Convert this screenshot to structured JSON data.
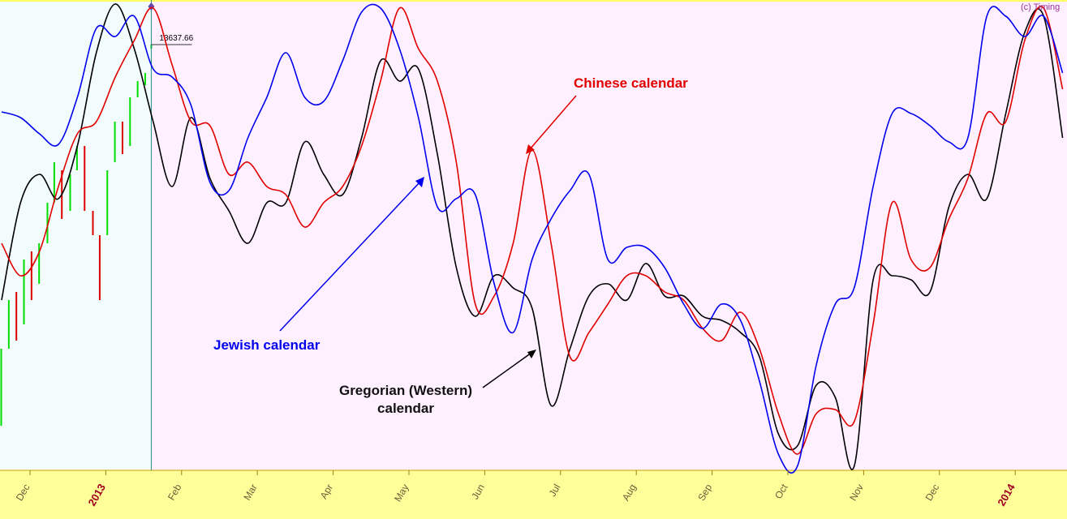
{
  "chart_data": {
    "type": "line",
    "x": [
      -0.375,
      -0.125,
      0.125,
      0.375,
      0.625,
      0.875,
      1.125,
      1.375,
      1.625,
      1.875,
      2.125,
      2.375,
      2.625,
      2.875,
      3.125,
      3.375,
      3.625,
      3.875,
      4.125,
      4.375,
      4.625,
      4.875,
      5.125,
      5.375,
      5.625,
      5.875,
      6.125,
      6.375,
      6.625,
      6.875,
      7.125,
      7.375,
      7.625,
      7.875,
      8.125,
      8.375,
      8.625,
      8.875,
      9.125,
      9.375,
      9.625,
      9.875,
      10.125,
      10.375,
      10.625,
      10.875,
      11.125,
      11.375,
      11.625,
      11.875,
      12.125,
      12.375,
      12.625,
      12.875,
      13.125,
      13.375,
      13.625
    ],
    "series": [
      {
        "name": "Jewish calendar",
        "color": "#0000ee",
        "values": [
          44.2,
          43.5,
          41.5,
          40.2,
          46,
          54.5,
          53.5,
          56,
          49.5,
          48.5,
          45,
          35.5,
          34.5,
          41,
          46,
          51.5,
          46,
          45.5,
          50.5,
          56.5,
          57,
          52,
          43.5,
          32.5,
          33.5,
          34,
          23,
          17,
          26,
          31,
          34.5,
          36.5,
          26,
          27.5,
          27.5,
          25,
          20.5,
          17.5,
          20.5,
          18.5,
          11,
          2,
          0.5,
          13,
          20.5,
          22.5,
          35,
          44,
          44,
          42.5,
          40.5,
          41,
          56,
          56,
          53.5,
          56,
          49
        ]
      },
      {
        "name": "Chinese calendar",
        "color": "#e00000",
        "values": [
          28,
          24,
          27,
          35,
          41.5,
          43,
          48.5,
          53,
          57,
          50,
          43,
          42.5,
          36.5,
          38,
          35,
          34,
          30,
          33,
          35,
          40,
          48,
          57,
          52,
          48,
          38,
          20.5,
          21.5,
          28,
          39.5,
          28,
          14,
          17,
          20.5,
          24,
          24,
          22,
          21,
          17.5,
          16,
          19.5,
          15,
          7,
          2,
          7,
          7.5,
          6,
          18,
          33,
          26,
          25,
          31,
          36,
          44,
          43,
          53,
          57,
          47
        ]
      },
      {
        "name": [
          "Gregorian (Western)",
          "calendar"
        ],
        "color": "#000000",
        "values": [
          21,
          33,
          36.5,
          33.5,
          40,
          51.5,
          57.5,
          52,
          43,
          35,
          43.5,
          36,
          32,
          28,
          33,
          33,
          40.5,
          36.5,
          34,
          41,
          50.5,
          48,
          49.5,
          39,
          25,
          19,
          24,
          22.5,
          20,
          8,
          15,
          21.5,
          23,
          21,
          25.5,
          21.5,
          21.5,
          19,
          18.5,
          17,
          14,
          4.5,
          3,
          10.5,
          9,
          0.5,
          23.5,
          24,
          23.5,
          22,
          32.5,
          36.5,
          33.5,
          44,
          54,
          56,
          41
        ]
      }
    ],
    "price": {
      "x": [
        -0.38,
        -0.28,
        -0.18,
        -0.08,
        0.02,
        0.12,
        0.23,
        0.32,
        0.42,
        0.53,
        0.62,
        0.72,
        0.83,
        0.92,
        1.02,
        1.12,
        1.22,
        1.32,
        1.42,
        1.52,
        1.6
      ],
      "open": [
        5.5,
        15,
        22,
        18,
        27,
        23,
        28,
        33,
        37,
        32,
        37,
        40,
        32,
        29,
        29,
        38,
        43,
        40,
        46,
        47.5,
        52
      ],
      "close": [
        15,
        21,
        16,
        26,
        21,
        28,
        33,
        38,
        31,
        36.5,
        40,
        32,
        29,
        21,
        37,
        43,
        39,
        46,
        48,
        49,
        52.5
      ],
      "up_color": "#00dd00",
      "down_color": "#dd0000"
    },
    "last_price": 13637.66,
    "copyright": "(c) Timing",
    "xlim": [
      -0.396,
      13.683
    ],
    "ylim": [
      0,
      58
    ],
    "xticks": [
      {
        "value": 0,
        "label": "Dec"
      },
      {
        "value": 1,
        "label": "2013"
      },
      {
        "value": 2,
        "label": "Feb"
      },
      {
        "value": 3,
        "label": "Mar"
      },
      {
        "value": 4,
        "label": "Apr"
      },
      {
        "value": 5,
        "label": "May"
      },
      {
        "value": 6,
        "label": "Jun"
      },
      {
        "value": 7,
        "label": "Jul"
      },
      {
        "value": 8,
        "label": "Aug"
      },
      {
        "value": 9,
        "label": "Sep"
      },
      {
        "value": 10,
        "label": "Oct"
      },
      {
        "value": 11,
        "label": "Nov"
      },
      {
        "value": 12,
        "label": "Dec"
      },
      {
        "value": 13,
        "label": "2014"
      }
    ]
  }
}
